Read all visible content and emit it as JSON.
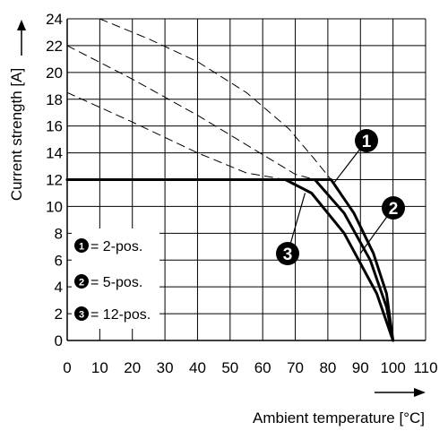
{
  "chart_data": {
    "type": "line",
    "xlabel": "Ambient temperature [°C]",
    "ylabel": "Current strength [A]",
    "xlim": [
      0,
      110
    ],
    "ylim": [
      0,
      24
    ],
    "xticks": [
      0,
      10,
      20,
      30,
      40,
      50,
      60,
      70,
      80,
      90,
      100,
      110
    ],
    "yticks": [
      0,
      2,
      4,
      6,
      8,
      10,
      12,
      14,
      16,
      18,
      20,
      22,
      24
    ],
    "grid": true,
    "legend_position": "bottom-left",
    "series": [
      {
        "name": "2-pos.",
        "marker": "1",
        "style": "solid",
        "points": [
          [
            0,
            12
          ],
          [
            81,
            12
          ],
          [
            88,
            9.5
          ],
          [
            94,
            6.5
          ],
          [
            98,
            3.5
          ],
          [
            100,
            0
          ]
        ]
      },
      {
        "name": "5-pos.",
        "marker": "2",
        "style": "solid",
        "points": [
          [
            0,
            12
          ],
          [
            76,
            12
          ],
          [
            85,
            9.5
          ],
          [
            93,
            6
          ],
          [
            98,
            2.5
          ],
          [
            100,
            0
          ]
        ]
      },
      {
        "name": "12-pos.",
        "marker": "3",
        "style": "solid",
        "points": [
          [
            0,
            12
          ],
          [
            67,
            12
          ],
          [
            75,
            11
          ],
          [
            85,
            8
          ],
          [
            95,
            3.5
          ],
          [
            100,
            0
          ]
        ]
      },
      {
        "style": "dashed",
        "points": [
          [
            10,
            24
          ],
          [
            25,
            22.5
          ],
          [
            40,
            20.8
          ],
          [
            55,
            18.5
          ],
          [
            68,
            15.8
          ],
          [
            76,
            13.5
          ],
          [
            81,
            12
          ]
        ]
      },
      {
        "style": "dashed",
        "points": [
          [
            0,
            22
          ],
          [
            20,
            19.5
          ],
          [
            40,
            16.8
          ],
          [
            55,
            14.6
          ],
          [
            70,
            12.4
          ],
          [
            76,
            12
          ]
        ]
      },
      {
        "style": "dashed",
        "points": [
          [
            0,
            18.5
          ],
          [
            20,
            16.3
          ],
          [
            40,
            14
          ],
          [
            55,
            12.5
          ],
          [
            67,
            12
          ]
        ]
      }
    ],
    "markers": [
      {
        "label": "1",
        "series": "2-pos.",
        "anchor_x": 82,
        "anchor_y": 11.8
      },
      {
        "label": "2",
        "series": "5-pos.",
        "anchor_x": 90,
        "anchor_y": 6.5
      },
      {
        "label": "3",
        "series": "12-pos.",
        "anchor_x": 73,
        "anchor_y": 11
      }
    ],
    "legend": [
      {
        "marker": "1",
        "text": "= 2-pos."
      },
      {
        "marker": "2",
        "text": "= 5-pos."
      },
      {
        "marker": "3",
        "text": "= 12-pos."
      }
    ]
  }
}
